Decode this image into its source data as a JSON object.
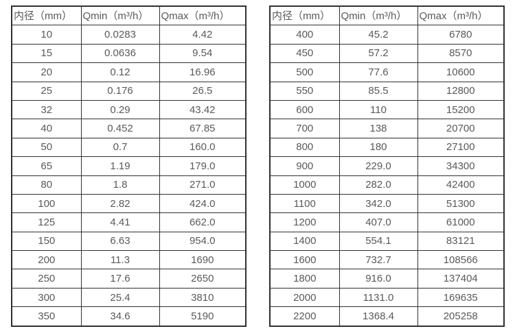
{
  "colors": {
    "border": "#2f2f2f",
    "text": "#595959",
    "background": "#ffffff"
  },
  "chart_data": [
    {
      "type": "table",
      "title": "",
      "columns": [
        "内径（mm）",
        "Qmin（m³/h）",
        "Qmax（m³/h）"
      ],
      "rows": [
        [
          "10",
          "0.0283",
          "4.42"
        ],
        [
          "15",
          "0.0636",
          "9.54"
        ],
        [
          "20",
          "0.12",
          "16.96"
        ],
        [
          "25",
          "0.176",
          "26.5"
        ],
        [
          "32",
          "0.29",
          "43.42"
        ],
        [
          "40",
          "0.452",
          "67.85"
        ],
        [
          "50",
          "0.7",
          "160.0"
        ],
        [
          "65",
          "1.19",
          "179.0"
        ],
        [
          "80",
          "1.8",
          "271.0"
        ],
        [
          "100",
          "2.82",
          "424.0"
        ],
        [
          "125",
          "4.41",
          "662.0"
        ],
        [
          "150",
          "6.63",
          "954.0"
        ],
        [
          "200",
          "11.3",
          "1690"
        ],
        [
          "250",
          "17.6",
          "2650"
        ],
        [
          "300",
          "25.4",
          "3810"
        ],
        [
          "350",
          "34.6",
          "5190"
        ]
      ]
    },
    {
      "type": "table",
      "title": "",
      "columns": [
        "内径（mm）",
        "Qmin（m³/h）",
        "Qmax（m³/h）"
      ],
      "rows": [
        [
          "400",
          "45.2",
          "6780"
        ],
        [
          "450",
          "57.2",
          "8570"
        ],
        [
          "500",
          "77.6",
          "10600"
        ],
        [
          "550",
          "85.5",
          "12800"
        ],
        [
          "600",
          "110",
          "15200"
        ],
        [
          "700",
          "138",
          "20700"
        ],
        [
          "800",
          "180",
          "27100"
        ],
        [
          "900",
          "229.0",
          "34300"
        ],
        [
          "1000",
          "282.0",
          "42400"
        ],
        [
          "1100",
          "342.0",
          "51300"
        ],
        [
          "1200",
          "407.0",
          "61000"
        ],
        [
          "1400",
          "554.1",
          "83121"
        ],
        [
          "1600",
          "732.7",
          "108566"
        ],
        [
          "1800",
          "916.0",
          "137404"
        ],
        [
          "2000",
          "1131.0",
          "169635"
        ],
        [
          "2200",
          "1368.4",
          "205258"
        ]
      ]
    }
  ]
}
